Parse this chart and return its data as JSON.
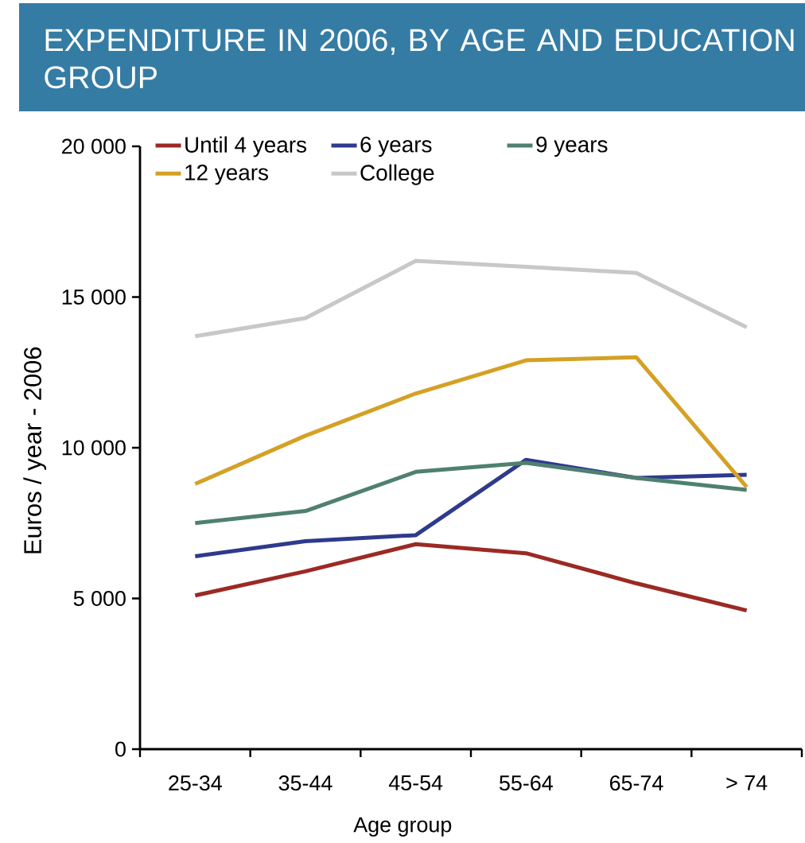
{
  "chart_data": {
    "type": "line",
    "title": "EXPENDITURE IN 2006, BY AGE AND EDUCATION GROUP",
    "xlabel": "Age group",
    "ylabel": "Euros / year - 2006",
    "categories": [
      "25-34",
      "35-44",
      "45-54",
      "55-64",
      "65-74",
      "> 74"
    ],
    "series": [
      {
        "name": "Until 4 years",
        "color": "#9b2a24",
        "values": [
          5100,
          5900,
          6800,
          6500,
          5500,
          4600
        ]
      },
      {
        "name": "6 years",
        "color": "#2e3a8c",
        "values": [
          6400,
          6900,
          7100,
          9600,
          9000,
          9100
        ]
      },
      {
        "name": "9 years",
        "color": "#4f8070",
        "values": [
          7500,
          7900,
          9200,
          9500,
          9000,
          8600
        ]
      },
      {
        "name": "12 years",
        "color": "#d4a125",
        "values": [
          8800,
          10400,
          11800,
          12900,
          13000,
          8700
        ]
      },
      {
        "name": "College",
        "color": "#c8c8c8",
        "values": [
          13700,
          14300,
          16200,
          16000,
          15800,
          14000
        ]
      }
    ],
    "ylim": [
      0,
      20000
    ],
    "yticks": [
      0,
      {
        "value": 5000,
        "label": "5 000"
      },
      {
        "value": 10000,
        "label": "10 000"
      },
      {
        "value": 15000,
        "label": "15 000"
      },
      {
        "value": 20000,
        "label": "20 000"
      }
    ],
    "legend": "top left"
  }
}
